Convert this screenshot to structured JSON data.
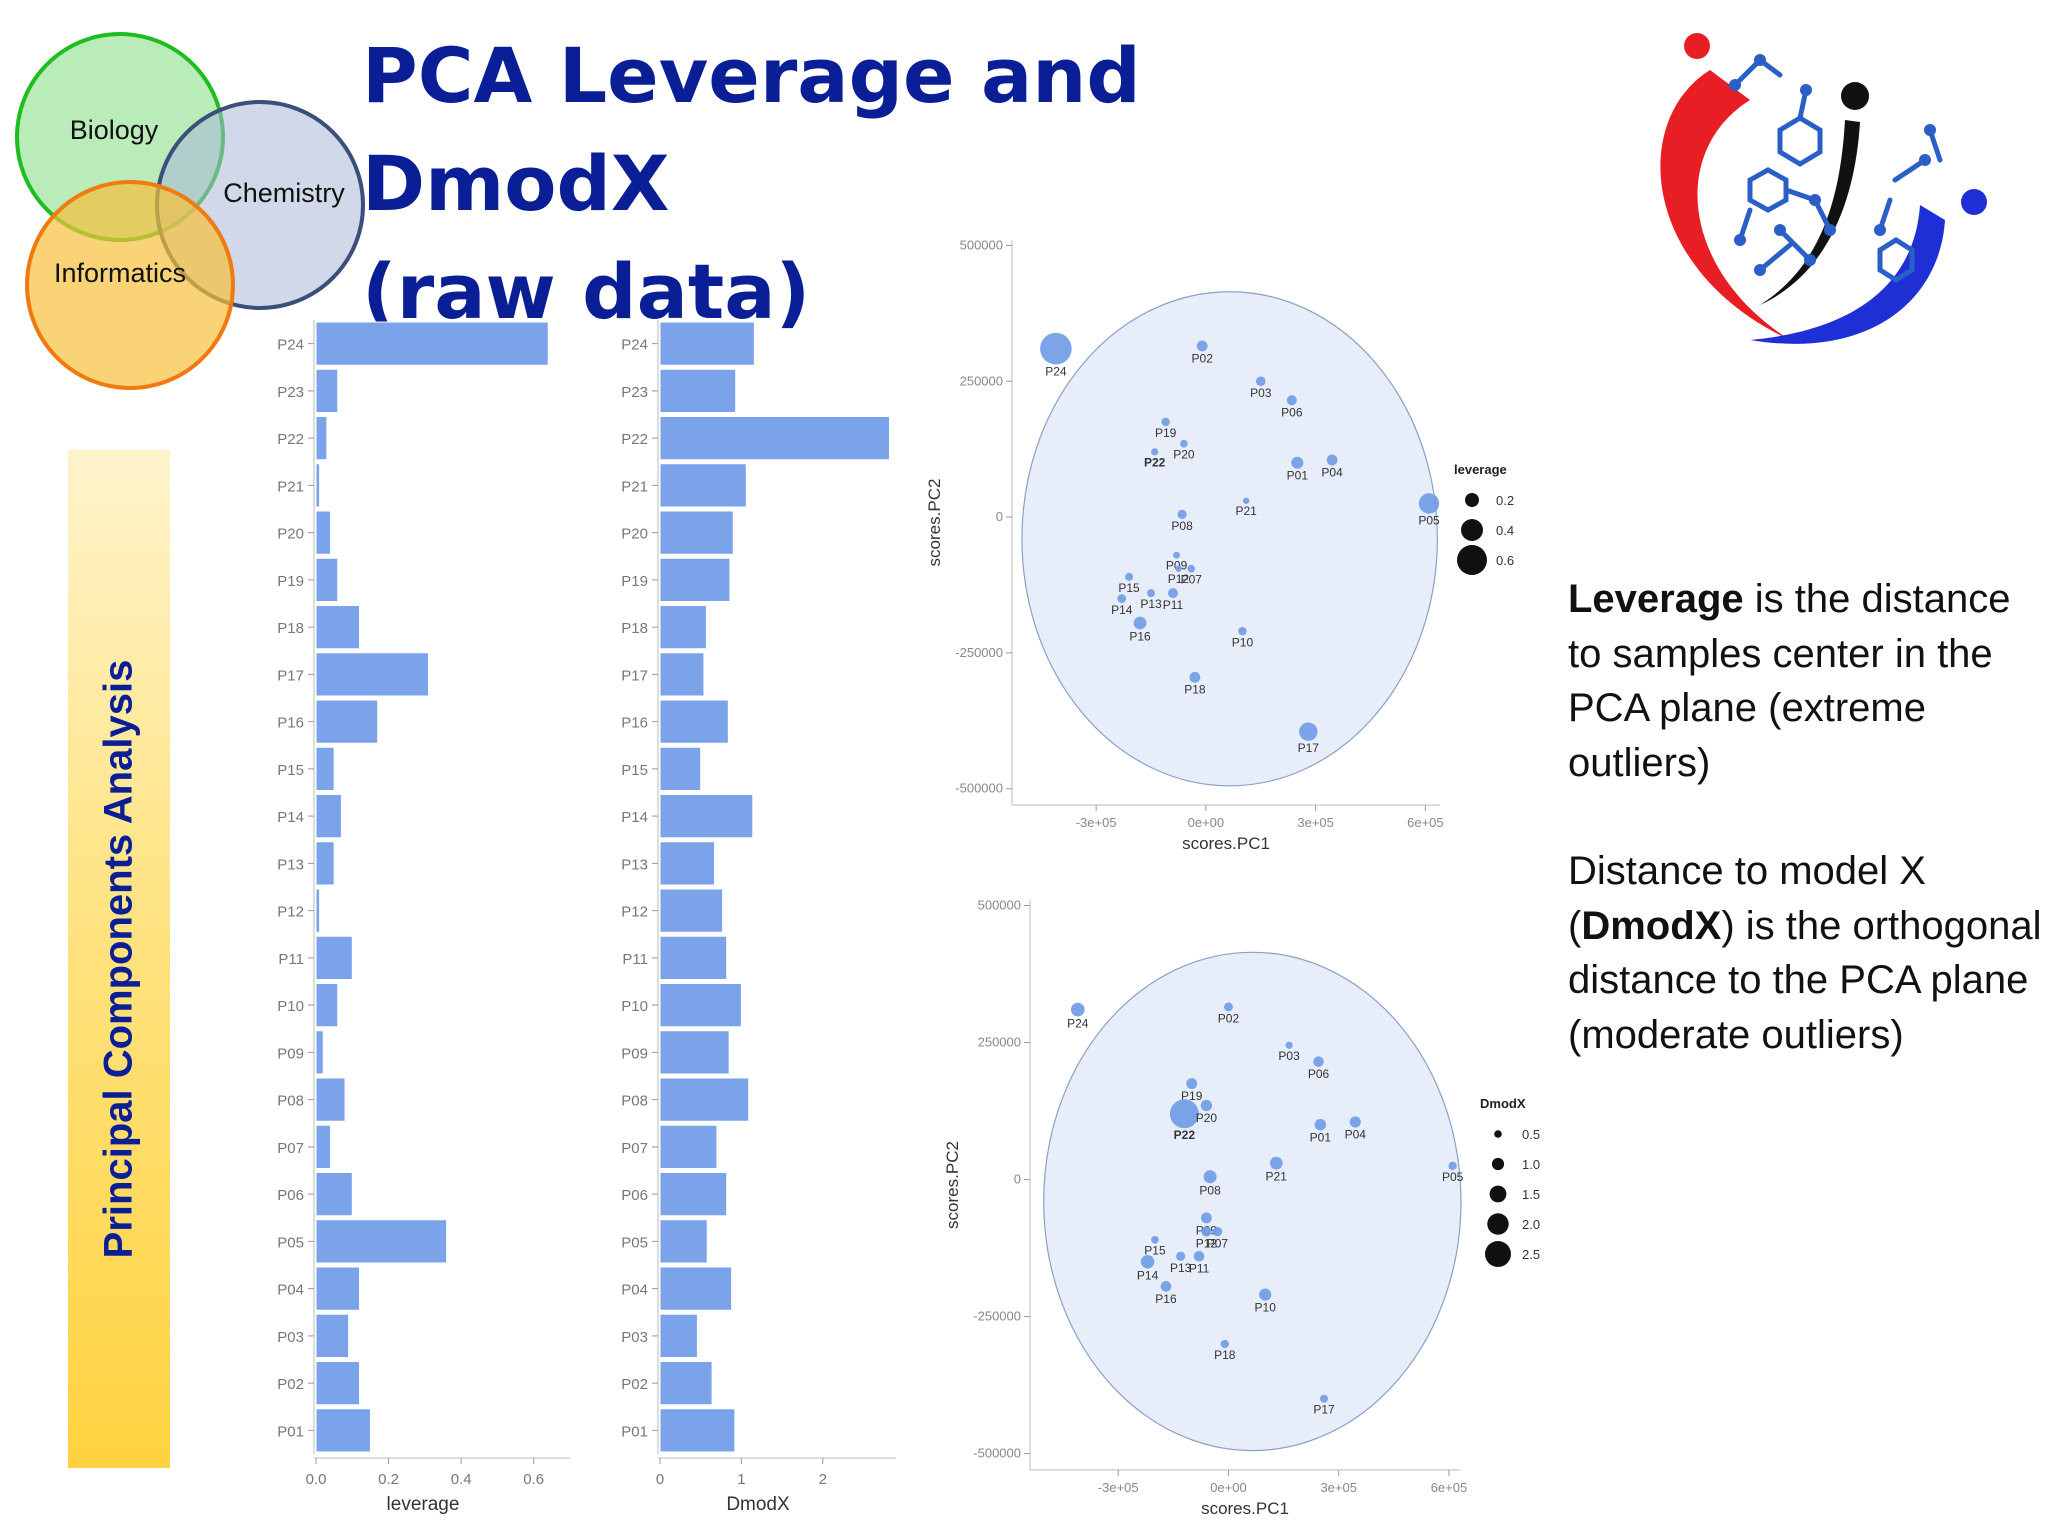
{
  "slide": {
    "title_line1": "PCA Leverage and DmodX",
    "title_line2": "(raw data)",
    "venn": {
      "biology": "Biology",
      "chemistry": "Chemistry",
      "informatics": "Informatics"
    },
    "side_banner": "Principal Components Analysis",
    "explanation": {
      "p1_bold": "Leverage",
      "p1_rest": " is the distance to samples center in the PCA plane (extreme outliers)",
      "p2_start": "Distance to model X (",
      "p2_bold": "DmodX",
      "p2_rest": ") is the orthogonal distance to the PCA plane (moderate outliers)"
    },
    "colors": {
      "title": "#0a1e96",
      "bar": "#7ba3ea",
      "point": "#6f9ae6",
      "ellipse_fill": "#dde6f6",
      "ellipse_stroke": "#8aa0c8"
    }
  },
  "chart_data": [
    {
      "type": "bar",
      "orientation": "horizontal",
      "categories": [
        "P01",
        "P02",
        "P03",
        "P04",
        "P05",
        "P06",
        "P07",
        "P08",
        "P09",
        "P10",
        "P11",
        "P12",
        "P13",
        "P14",
        "P15",
        "P16",
        "P17",
        "P18",
        "P19",
        "P20",
        "P21",
        "P22",
        "P23",
        "P24"
      ],
      "values": [
        0.15,
        0.12,
        0.09,
        0.12,
        0.36,
        0.1,
        0.04,
        0.08,
        0.02,
        0.06,
        0.1,
        0.01,
        0.05,
        0.07,
        0.05,
        0.17,
        0.31,
        0.12,
        0.06,
        0.04,
        0.01,
        0.03,
        0.06,
        0.64
      ],
      "xlabel": "leverage",
      "xlim": [
        0,
        0.7
      ],
      "xticks": [
        "0.0",
        "0.2",
        "0.4",
        "0.6"
      ],
      "xtick_values": [
        0,
        0.2,
        0.4,
        0.6
      ]
    },
    {
      "type": "bar",
      "orientation": "horizontal",
      "categories": [
        "P01",
        "P02",
        "P03",
        "P04",
        "P05",
        "P06",
        "P07",
        "P08",
        "P09",
        "P10",
        "P11",
        "P12",
        "P13",
        "P14",
        "P15",
        "P16",
        "P17",
        "P18",
        "P19",
        "P20",
        "P21",
        "P22",
        "P23",
        "P24"
      ],
      "values": [
        0.92,
        0.64,
        0.46,
        0.88,
        0.58,
        0.82,
        0.7,
        1.09,
        0.85,
        1.0,
        0.82,
        0.77,
        0.67,
        1.14,
        0.5,
        0.84,
        0.54,
        0.57,
        0.86,
        0.9,
        1.06,
        2.82,
        0.93,
        1.16
      ],
      "xlabel": "DmodX",
      "xlim": [
        0,
        2.9
      ],
      "xticks": [
        "0",
        "1",
        "2"
      ],
      "xtick_values": [
        0,
        1,
        2
      ]
    },
    {
      "type": "scatter",
      "xlabel": "scores.PC1",
      "ylabel": "scores.PC2",
      "xlim": [
        -530000,
        640000
      ],
      "ylim": [
        -530000,
        510000
      ],
      "xticks": [
        "-3e+05",
        "0e+00",
        "3e+05",
        "6e+05"
      ],
      "xtick_values": [
        -300000,
        0,
        300000,
        600000
      ],
      "yticks": [
        "-500000",
        "-250000",
        "0",
        "250000",
        "500000"
      ],
      "ytick_values": [
        -500000,
        -250000,
        0,
        250000,
        500000
      ],
      "size_legend": {
        "title": "leverage",
        "entries": [
          "0.2",
          "0.4",
          "0.6"
        ],
        "entry_values": [
          0.2,
          0.4,
          0.6
        ]
      },
      "points": [
        {
          "label": "P24",
          "x": -410000,
          "y": 310000,
          "size": 0.64
        },
        {
          "label": "P02",
          "x": -10000,
          "y": 315000,
          "size": 0.12
        },
        {
          "label": "P03",
          "x": 150000,
          "y": 250000,
          "size": 0.09
        },
        {
          "label": "P06",
          "x": 235000,
          "y": 215000,
          "size": 0.1
        },
        {
          "label": "P19",
          "x": -110000,
          "y": 175000,
          "size": 0.06
        },
        {
          "label": "P22",
          "x": -140000,
          "y": 120000,
          "size": 0.03
        },
        {
          "label": "P20",
          "x": -60000,
          "y": 135000,
          "size": 0.04
        },
        {
          "label": "P01",
          "x": 250000,
          "y": 100000,
          "size": 0.15
        },
        {
          "label": "P04",
          "x": 345000,
          "y": 105000,
          "size": 0.12
        },
        {
          "label": "P21",
          "x": 110000,
          "y": 30000,
          "size": 0.01
        },
        {
          "label": "P08",
          "x": -65000,
          "y": 5000,
          "size": 0.08
        },
        {
          "label": "P05",
          "x": 610000,
          "y": 25000,
          "size": 0.36
        },
        {
          "label": "P09",
          "x": -80000,
          "y": -70000,
          "size": 0.02
        },
        {
          "label": "P12",
          "x": -75000,
          "y": -95000,
          "size": 0.01
        },
        {
          "label": "P07",
          "x": -40000,
          "y": -95000,
          "size": 0.04
        },
        {
          "label": "P15",
          "x": -210000,
          "y": -110000,
          "size": 0.05
        },
        {
          "label": "P13",
          "x": -150000,
          "y": -140000,
          "size": 0.05
        },
        {
          "label": "P14",
          "x": -230000,
          "y": -150000,
          "size": 0.07
        },
        {
          "label": "P11",
          "x": -90000,
          "y": -140000,
          "size": 0.1
        },
        {
          "label": "P16",
          "x": -180000,
          "y": -195000,
          "size": 0.17
        },
        {
          "label": "P10",
          "x": 100000,
          "y": -210000,
          "size": 0.06
        },
        {
          "label": "P18",
          "x": -30000,
          "y": -295000,
          "size": 0.12
        },
        {
          "label": "P17",
          "x": 280000,
          "y": -395000,
          "size": 0.31
        }
      ]
    },
    {
      "type": "scatter",
      "xlabel": "scores.PC1",
      "ylabel": "scores.PC2",
      "xlim": [
        -540000,
        630000
      ],
      "ylim": [
        -530000,
        510000
      ],
      "xticks": [
        "-3e+05",
        "0e+00",
        "3e+05",
        "6e+05"
      ],
      "xtick_values": [
        -300000,
        0,
        300000,
        600000
      ],
      "yticks": [
        "-500000",
        "-250000",
        "0",
        "250000",
        "500000"
      ],
      "ytick_values": [
        -500000,
        -250000,
        0,
        250000,
        500000
      ],
      "size_legend": {
        "title": "DmodX",
        "entries": [
          "0.5",
          "1.0",
          "1.5",
          "2.0",
          "2.5"
        ],
        "entry_values": [
          0.5,
          1.0,
          1.5,
          2.0,
          2.5
        ]
      },
      "points": [
        {
          "label": "P24",
          "x": -410000,
          "y": 310000,
          "size": 1.16
        },
        {
          "label": "P02",
          "x": 0,
          "y": 315000,
          "size": 0.64
        },
        {
          "label": "P03",
          "x": 165000,
          "y": 245000,
          "size": 0.46
        },
        {
          "label": "P06",
          "x": 245000,
          "y": 215000,
          "size": 0.82
        },
        {
          "label": "P19",
          "x": -100000,
          "y": 175000,
          "size": 0.86
        },
        {
          "label": "P22",
          "x": -120000,
          "y": 120000,
          "size": 2.82
        },
        {
          "label": "P20",
          "x": -60000,
          "y": 135000,
          "size": 0.9
        },
        {
          "label": "P01",
          "x": 250000,
          "y": 100000,
          "size": 0.92
        },
        {
          "label": "P04",
          "x": 345000,
          "y": 105000,
          "size": 0.88
        },
        {
          "label": "P21",
          "x": 130000,
          "y": 30000,
          "size": 1.06
        },
        {
          "label": "P08",
          "x": -50000,
          "y": 5000,
          "size": 1.09
        },
        {
          "label": "P05",
          "x": 610000,
          "y": 25000,
          "size": 0.58
        },
        {
          "label": "P09",
          "x": -60000,
          "y": -70000,
          "size": 0.85
        },
        {
          "label": "P12",
          "x": -60000,
          "y": -95000,
          "size": 0.77
        },
        {
          "label": "P07",
          "x": -30000,
          "y": -95000,
          "size": 0.7
        },
        {
          "label": "P15",
          "x": -200000,
          "y": -110000,
          "size": 0.5
        },
        {
          "label": "P13",
          "x": -130000,
          "y": -140000,
          "size": 0.67
        },
        {
          "label": "P14",
          "x": -220000,
          "y": -150000,
          "size": 1.14
        },
        {
          "label": "P11",
          "x": -80000,
          "y": -140000,
          "size": 0.82
        },
        {
          "label": "P16",
          "x": -170000,
          "y": -195000,
          "size": 0.84
        },
        {
          "label": "P10",
          "x": 100000,
          "y": -210000,
          "size": 1.0
        },
        {
          "label": "P18",
          "x": -10000,
          "y": -300000,
          "size": 0.57
        },
        {
          "label": "P17",
          "x": 260000,
          "y": -400000,
          "size": 0.54
        }
      ]
    }
  ]
}
